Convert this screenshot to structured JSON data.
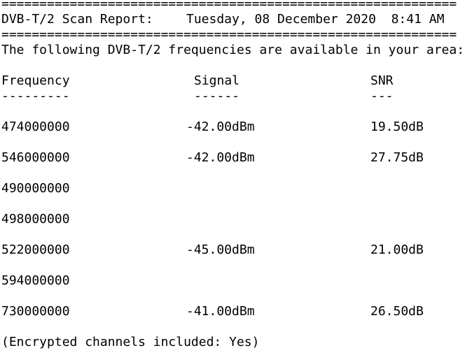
{
  "header": {
    "rule_top": "============================================================",
    "title": "DVB-T/2 Scan Report:",
    "date": "Tuesday, 08 December 2020  8:41 AM",
    "rule_bottom": "============================================================"
  },
  "intro": "The following DVB-T/2 frequencies are available in your area:",
  "table": {
    "columns": [
      "Frequency",
      "Signal",
      "SNR"
    ],
    "underlines": [
      "---------",
      "------",
      "---"
    ],
    "rows": [
      {
        "frequency": "474000000",
        "signal": "-42.00dBm",
        "snr": "19.50dB"
      },
      {
        "frequency": "546000000",
        "signal": "-42.00dBm",
        "snr": "27.75dB"
      },
      {
        "frequency": "490000000"
      },
      {
        "frequency": "498000000"
      },
      {
        "frequency": "522000000",
        "signal": "-45.00dBm",
        "snr": "21.00dB"
      },
      {
        "frequency": "594000000"
      },
      {
        "frequency": "730000000",
        "signal": "-41.00dBm",
        "snr": "26.50dB"
      }
    ]
  },
  "footer": "(Encrypted channels included: Yes)"
}
